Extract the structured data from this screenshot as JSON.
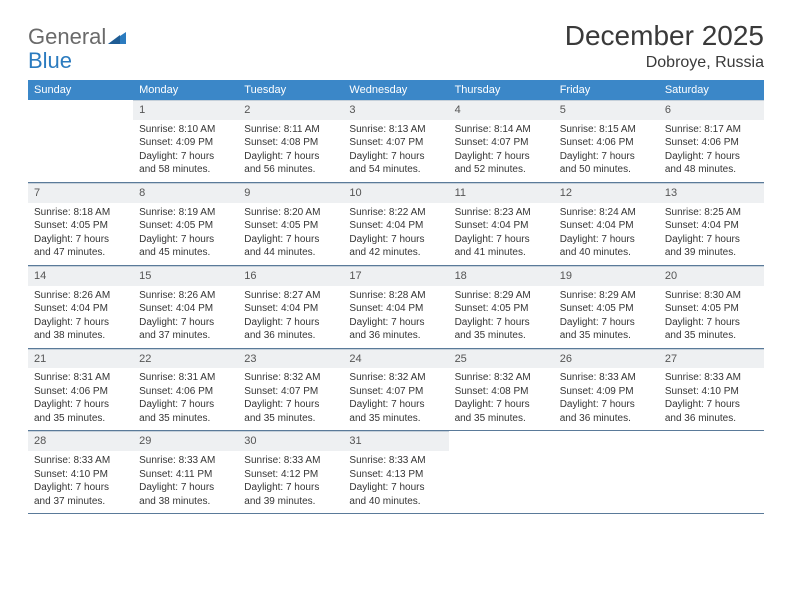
{
  "logo": {
    "text1": "General",
    "text2": "Blue"
  },
  "title": "December 2025",
  "location": "Dobroye, Russia",
  "colors": {
    "header_bg": "#3b87c8",
    "header_text": "#ffffff",
    "daynum_bg": "#eef0f2",
    "divider": "#5a7a99",
    "text": "#353535",
    "logo_gray": "#6a6a6a",
    "logo_blue": "#2b7bbf"
  },
  "day_headers": [
    "Sunday",
    "Monday",
    "Tuesday",
    "Wednesday",
    "Thursday",
    "Friday",
    "Saturday"
  ],
  "weeks": [
    [
      {
        "n": "",
        "l1": "",
        "l2": "",
        "l3": ""
      },
      {
        "n": "1",
        "l1": "Sunrise: 8:10 AM",
        "l2": "Sunset: 4:09 PM",
        "l3": "Daylight: 7 hours and 58 minutes."
      },
      {
        "n": "2",
        "l1": "Sunrise: 8:11 AM",
        "l2": "Sunset: 4:08 PM",
        "l3": "Daylight: 7 hours and 56 minutes."
      },
      {
        "n": "3",
        "l1": "Sunrise: 8:13 AM",
        "l2": "Sunset: 4:07 PM",
        "l3": "Daylight: 7 hours and 54 minutes."
      },
      {
        "n": "4",
        "l1": "Sunrise: 8:14 AM",
        "l2": "Sunset: 4:07 PM",
        "l3": "Daylight: 7 hours and 52 minutes."
      },
      {
        "n": "5",
        "l1": "Sunrise: 8:15 AM",
        "l2": "Sunset: 4:06 PM",
        "l3": "Daylight: 7 hours and 50 minutes."
      },
      {
        "n": "6",
        "l1": "Sunrise: 8:17 AM",
        "l2": "Sunset: 4:06 PM",
        "l3": "Daylight: 7 hours and 48 minutes."
      }
    ],
    [
      {
        "n": "7",
        "l1": "Sunrise: 8:18 AM",
        "l2": "Sunset: 4:05 PM",
        "l3": "Daylight: 7 hours and 47 minutes."
      },
      {
        "n": "8",
        "l1": "Sunrise: 8:19 AM",
        "l2": "Sunset: 4:05 PM",
        "l3": "Daylight: 7 hours and 45 minutes."
      },
      {
        "n": "9",
        "l1": "Sunrise: 8:20 AM",
        "l2": "Sunset: 4:05 PM",
        "l3": "Daylight: 7 hours and 44 minutes."
      },
      {
        "n": "10",
        "l1": "Sunrise: 8:22 AM",
        "l2": "Sunset: 4:04 PM",
        "l3": "Daylight: 7 hours and 42 minutes."
      },
      {
        "n": "11",
        "l1": "Sunrise: 8:23 AM",
        "l2": "Sunset: 4:04 PM",
        "l3": "Daylight: 7 hours and 41 minutes."
      },
      {
        "n": "12",
        "l1": "Sunrise: 8:24 AM",
        "l2": "Sunset: 4:04 PM",
        "l3": "Daylight: 7 hours and 40 minutes."
      },
      {
        "n": "13",
        "l1": "Sunrise: 8:25 AM",
        "l2": "Sunset: 4:04 PM",
        "l3": "Daylight: 7 hours and 39 minutes."
      }
    ],
    [
      {
        "n": "14",
        "l1": "Sunrise: 8:26 AM",
        "l2": "Sunset: 4:04 PM",
        "l3": "Daylight: 7 hours and 38 minutes."
      },
      {
        "n": "15",
        "l1": "Sunrise: 8:26 AM",
        "l2": "Sunset: 4:04 PM",
        "l3": "Daylight: 7 hours and 37 minutes."
      },
      {
        "n": "16",
        "l1": "Sunrise: 8:27 AM",
        "l2": "Sunset: 4:04 PM",
        "l3": "Daylight: 7 hours and 36 minutes."
      },
      {
        "n": "17",
        "l1": "Sunrise: 8:28 AM",
        "l2": "Sunset: 4:04 PM",
        "l3": "Daylight: 7 hours and 36 minutes."
      },
      {
        "n": "18",
        "l1": "Sunrise: 8:29 AM",
        "l2": "Sunset: 4:05 PM",
        "l3": "Daylight: 7 hours and 35 minutes."
      },
      {
        "n": "19",
        "l1": "Sunrise: 8:29 AM",
        "l2": "Sunset: 4:05 PM",
        "l3": "Daylight: 7 hours and 35 minutes."
      },
      {
        "n": "20",
        "l1": "Sunrise: 8:30 AM",
        "l2": "Sunset: 4:05 PM",
        "l3": "Daylight: 7 hours and 35 minutes."
      }
    ],
    [
      {
        "n": "21",
        "l1": "Sunrise: 8:31 AM",
        "l2": "Sunset: 4:06 PM",
        "l3": "Daylight: 7 hours and 35 minutes."
      },
      {
        "n": "22",
        "l1": "Sunrise: 8:31 AM",
        "l2": "Sunset: 4:06 PM",
        "l3": "Daylight: 7 hours and 35 minutes."
      },
      {
        "n": "23",
        "l1": "Sunrise: 8:32 AM",
        "l2": "Sunset: 4:07 PM",
        "l3": "Daylight: 7 hours and 35 minutes."
      },
      {
        "n": "24",
        "l1": "Sunrise: 8:32 AM",
        "l2": "Sunset: 4:07 PM",
        "l3": "Daylight: 7 hours and 35 minutes."
      },
      {
        "n": "25",
        "l1": "Sunrise: 8:32 AM",
        "l2": "Sunset: 4:08 PM",
        "l3": "Daylight: 7 hours and 35 minutes."
      },
      {
        "n": "26",
        "l1": "Sunrise: 8:33 AM",
        "l2": "Sunset: 4:09 PM",
        "l3": "Daylight: 7 hours and 36 minutes."
      },
      {
        "n": "27",
        "l1": "Sunrise: 8:33 AM",
        "l2": "Sunset: 4:10 PM",
        "l3": "Daylight: 7 hours and 36 minutes."
      }
    ],
    [
      {
        "n": "28",
        "l1": "Sunrise: 8:33 AM",
        "l2": "Sunset: 4:10 PM",
        "l3": "Daylight: 7 hours and 37 minutes."
      },
      {
        "n": "29",
        "l1": "Sunrise: 8:33 AM",
        "l2": "Sunset: 4:11 PM",
        "l3": "Daylight: 7 hours and 38 minutes."
      },
      {
        "n": "30",
        "l1": "Sunrise: 8:33 AM",
        "l2": "Sunset: 4:12 PM",
        "l3": "Daylight: 7 hours and 39 minutes."
      },
      {
        "n": "31",
        "l1": "Sunrise: 8:33 AM",
        "l2": "Sunset: 4:13 PM",
        "l3": "Daylight: 7 hours and 40 minutes."
      },
      {
        "n": "",
        "l1": "",
        "l2": "",
        "l3": ""
      },
      {
        "n": "",
        "l1": "",
        "l2": "",
        "l3": ""
      },
      {
        "n": "",
        "l1": "",
        "l2": "",
        "l3": ""
      }
    ]
  ]
}
